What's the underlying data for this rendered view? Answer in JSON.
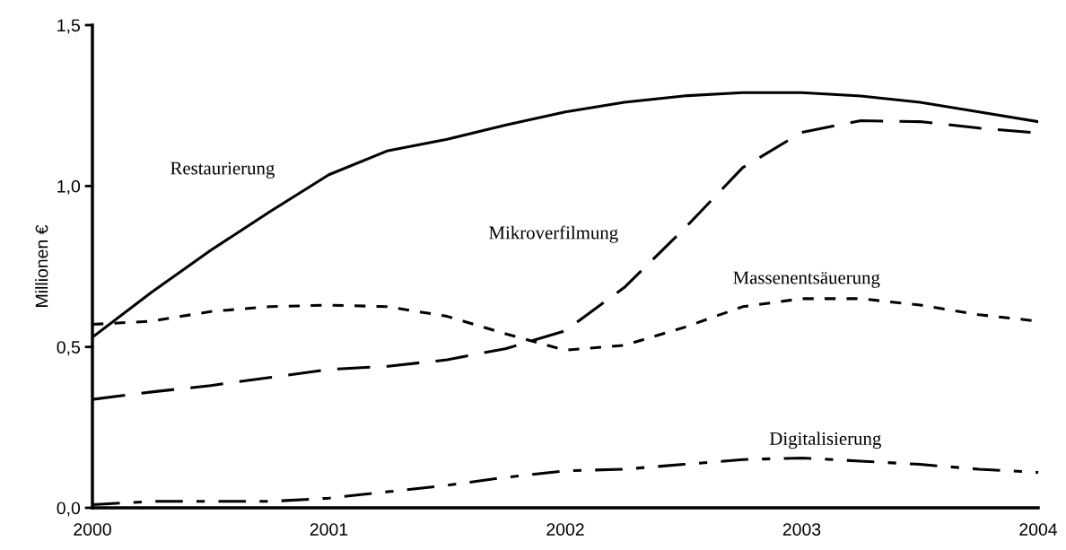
{
  "chart_data": {
    "type": "line",
    "ylabel": "Millionen €",
    "x": [
      2000,
      2000.25,
      2000.5,
      2000.75,
      2001,
      2001.25,
      2001.5,
      2001.75,
      2002,
      2002.25,
      2002.5,
      2002.75,
      2003,
      2003.25,
      2003.5,
      2003.75,
      2004
    ],
    "series": [
      {
        "name": "Restaurierung",
        "color": "#000000",
        "line_style": "solid",
        "values": [
          0.53,
          0.67,
          0.8,
          0.92,
          1.035,
          1.11,
          1.145,
          1.19,
          1.23,
          1.26,
          1.28,
          1.29,
          1.29,
          1.28,
          1.26,
          1.23,
          1.2
        ]
      },
      {
        "name": "Mikroverfilmung",
        "color": "#000000",
        "line_style": "dashed",
        "values": [
          0.337,
          0.36,
          0.38,
          0.405,
          0.43,
          0.44,
          0.46,
          0.495,
          0.55,
          0.685,
          0.865,
          1.057,
          1.167,
          1.203,
          1.2,
          1.18,
          1.165
        ]
      },
      {
        "name": "Massenentsäuerung",
        "color": "#000000",
        "line_style": "dotted",
        "values": [
          0.57,
          0.58,
          0.61,
          0.625,
          0.63,
          0.625,
          0.595,
          0.54,
          0.49,
          0.505,
          0.56,
          0.625,
          0.65,
          0.65,
          0.63,
          0.6,
          0.58
        ]
      },
      {
        "name": "Digitalisierung",
        "color": "#000000",
        "line_style": "dashdot",
        "values": [
          0.01,
          0.02,
          0.02,
          0.02,
          0.03,
          0.05,
          0.07,
          0.095,
          0.115,
          0.12,
          0.135,
          0.15,
          0.155,
          0.145,
          0.135,
          0.12,
          0.11
        ]
      }
    ],
    "xlim": [
      2000,
      2004
    ],
    "xticks": [
      2000,
      2001,
      2002,
      2003,
      2004
    ],
    "ylim": [
      0,
      1.5
    ],
    "yticks": [
      {
        "value": 0,
        "label": "0,0"
      },
      {
        "value": 0.5,
        "label": "0,5"
      },
      {
        "value": 1.0,
        "label": "1,0"
      },
      {
        "value": 1.5,
        "label": "1,5"
      }
    ],
    "grid": false,
    "legend": false,
    "marker": "none"
  }
}
